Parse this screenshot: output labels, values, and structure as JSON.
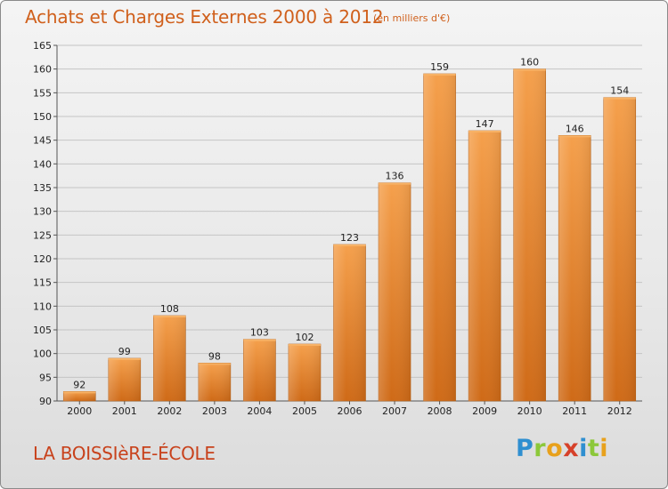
{
  "header": {
    "title": "Achats et Charges Externes 2000 à 2012",
    "subtitle": "(en milliers d'€)"
  },
  "footer": {
    "location": "LA BOISSIèRE-ÉCOLE",
    "logo_letters": [
      "P",
      "r",
      "o",
      "x",
      "i",
      "t",
      "i"
    ],
    "logo_colors": [
      "#2f8fd0",
      "#8cc83a",
      "#e8a11c",
      "#d6412a",
      "#2f8fd0",
      "#8cc83a",
      "#e8a11c"
    ]
  },
  "colors": {
    "bar_light": "#f5a04c",
    "bar_dark": "#cf6a17",
    "accent": "#d0601c"
  },
  "chart_data": {
    "type": "bar",
    "categories": [
      "2000",
      "2001",
      "2002",
      "2003",
      "2004",
      "2005",
      "2006",
      "2007",
      "2008",
      "2009",
      "2010",
      "2011",
      "2012"
    ],
    "values": [
      92,
      99,
      108,
      98,
      103,
      102,
      123,
      136,
      159,
      147,
      160,
      146,
      154
    ],
    "ylim": [
      90,
      165
    ],
    "yticks": [
      90,
      95,
      100,
      105,
      110,
      115,
      120,
      125,
      130,
      135,
      140,
      145,
      150,
      155,
      160,
      165
    ],
    "grid": true,
    "title": "Achats et Charges Externes 2000 à 2012",
    "xlabel": "",
    "ylabel": ""
  }
}
